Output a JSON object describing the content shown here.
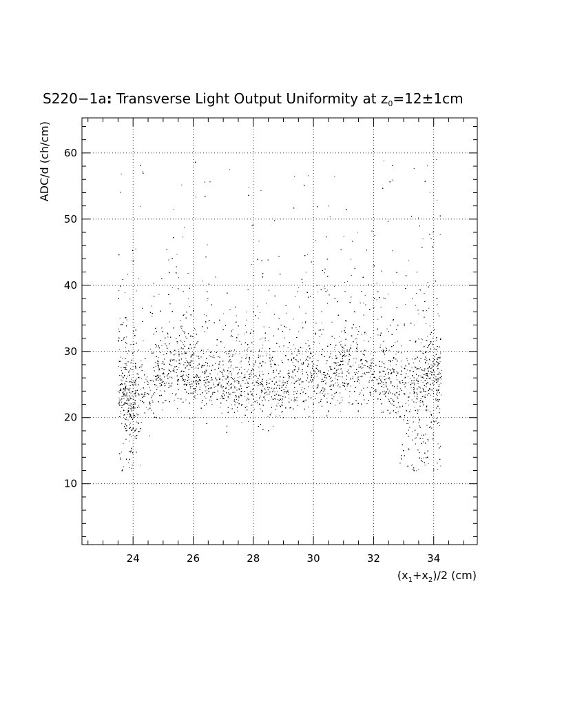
{
  "chart_data": {
    "type": "scatter",
    "title": {
      "prefix": "S220−1a",
      "colon": ":",
      "main": " Transverse Light Output Uniformity at z",
      "subscript": "0",
      "suffix": "=12±1cm"
    },
    "ylabel": "ADC/d (ch/cm)",
    "xlabel": {
      "open": "(x",
      "sub1": "1",
      "plus": "+x",
      "sub2": "2",
      "close": ")/2 (cm)"
    },
    "xlim": [
      22.3,
      35.45
    ],
    "ylim": [
      0.8,
      65.3
    ],
    "x_major_ticks": [
      24,
      26,
      28,
      30,
      32,
      34
    ],
    "x_tick_labels": [
      "24",
      "26",
      "28",
      "30",
      "32",
      "34"
    ],
    "y_major_ticks": [
      10,
      20,
      30,
      40,
      50,
      60
    ],
    "y_tick_labels": [
      "10",
      "20",
      "30",
      "40",
      "50",
      "60"
    ],
    "grid": true,
    "marker_color": "#000000",
    "density_profile": {
      "x": [
        23.6,
        24.0,
        24.5,
        25.0,
        25.5,
        26.0,
        26.5,
        27.0,
        27.5,
        28.0,
        28.5,
        29.0,
        29.5,
        30.0,
        30.5,
        31.0,
        31.5,
        32.0,
        32.5,
        33.0,
        33.5,
        34.0
      ],
      "y_mean": [
        25.0,
        22.5,
        24.5,
        26.5,
        27.0,
        26.5,
        26.0,
        25.0,
        25.5,
        25.5,
        25.0,
        25.0,
        26.0,
        26.5,
        26.0,
        27.0,
        27.5,
        27.0,
        26.0,
        25.0,
        25.5,
        27.0
      ]
    },
    "point_count": 14000
  }
}
